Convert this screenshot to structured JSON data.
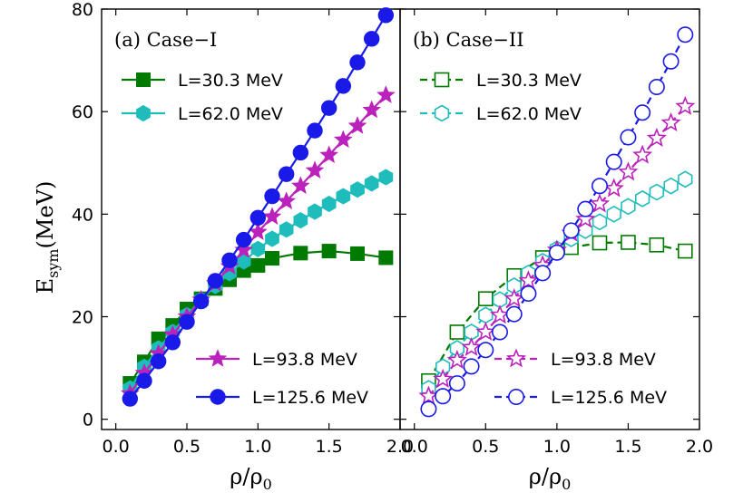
{
  "chart_data": [
    {
      "type": "line",
      "title": "(a) Case−I",
      "xlabel": "ρ/ρ",
      "xlabel_sub": "0",
      "ylabel": "E",
      "ylabel_sub": "sym",
      "ylabel_unit": "(MeV)",
      "xlim": [
        -0.1,
        2.0
      ],
      "ylim": [
        -2,
        80
      ],
      "xticks": [
        "0.0",
        "0.5",
        "1.0",
        "1.5",
        "2.0"
      ],
      "yticks": [
        "0",
        "20",
        "40",
        "60",
        "80"
      ],
      "series": [
        {
          "name": "L=30.3 MeV",
          "color": "#007a00",
          "marker": "square",
          "filled": true,
          "linestyle": "solid",
          "x": [
            0.1,
            0.2,
            0.3,
            0.4,
            0.5,
            0.6,
            0.7,
            0.8,
            0.9,
            1.0,
            1.1,
            1.3,
            1.5,
            1.7,
            1.9
          ],
          "y": [
            7.0,
            11.2,
            15.7,
            18.3,
            21.5,
            23.5,
            25.5,
            27.2,
            29.0,
            30.0,
            31.4,
            32.4,
            32.8,
            32.3,
            31.5
          ]
        },
        {
          "name": "L=62.0 MeV",
          "color": "#1fbcbc",
          "marker": "hexagon",
          "filled": true,
          "linestyle": "solid",
          "x": [
            0.1,
            0.2,
            0.3,
            0.4,
            0.5,
            0.6,
            0.7,
            0.8,
            0.9,
            1.0,
            1.1,
            1.2,
            1.3,
            1.4,
            1.5,
            1.6,
            1.7,
            1.8,
            1.9
          ],
          "y": [
            6.0,
            10.2,
            13.8,
            17.0,
            20.3,
            23.3,
            26.0,
            28.5,
            30.8,
            33.2,
            35.2,
            37.0,
            38.8,
            40.5,
            42.0,
            43.5,
            44.8,
            46.0,
            47.2
          ]
        },
        {
          "name": "L=93.8 MeV",
          "color": "#bb22bb",
          "marker": "star",
          "filled": true,
          "linestyle": "solid",
          "x": [
            0.1,
            0.2,
            0.3,
            0.4,
            0.5,
            0.6,
            0.7,
            0.8,
            0.9,
            1.0,
            1.1,
            1.2,
            1.3,
            1.4,
            1.5,
            1.6,
            1.7,
            1.8,
            1.9
          ],
          "y": [
            5.0,
            9.0,
            12.8,
            16.5,
            20.0,
            23.3,
            26.5,
            29.8,
            33.0,
            36.5,
            39.5,
            42.5,
            45.5,
            48.5,
            51.5,
            54.5,
            57.2,
            60.3,
            63.2
          ]
        },
        {
          "name": "L=125.6 MeV",
          "color": "#1a1ae8",
          "marker": "circle",
          "filled": true,
          "linestyle": "solid",
          "x": [
            0.1,
            0.2,
            0.3,
            0.4,
            0.5,
            0.6,
            0.7,
            0.8,
            0.9,
            1.0,
            1.1,
            1.2,
            1.3,
            1.4,
            1.5,
            1.6,
            1.7,
            1.8,
            1.9
          ],
          "y": [
            4.0,
            7.5,
            11.3,
            15.0,
            19.0,
            23.0,
            27.0,
            31.0,
            35.0,
            39.3,
            43.5,
            47.8,
            52.0,
            56.3,
            60.7,
            65.0,
            69.6,
            74.2,
            78.8
          ]
        }
      ]
    },
    {
      "type": "line",
      "title": "(b) Case−II",
      "xlabel": "ρ/ρ",
      "xlabel_sub": "0",
      "xlim": [
        -0.1,
        2.0
      ],
      "ylim": [
        -2,
        80
      ],
      "xticks": [
        "0.0",
        "0.5",
        "1.0",
        "1.5",
        "2.0"
      ],
      "series": [
        {
          "name": "L=30.3 MeV",
          "color": "#007a00",
          "marker": "square",
          "filled": false,
          "linestyle": "dashed",
          "x": [
            0.1,
            0.3,
            0.5,
            0.7,
            0.9,
            1.1,
            1.3,
            1.5,
            1.7,
            1.9
          ],
          "y": [
            7.5,
            17.0,
            23.5,
            28.0,
            31.5,
            33.5,
            34.4,
            34.5,
            34.0,
            32.8
          ]
        },
        {
          "name": "L=62.0 MeV",
          "color": "#1fbcbc",
          "marker": "hexagon",
          "filled": false,
          "linestyle": "dashed",
          "x": [
            0.1,
            0.2,
            0.3,
            0.4,
            0.5,
            0.6,
            0.7,
            0.8,
            0.9,
            1.0,
            1.1,
            1.2,
            1.3,
            1.4,
            1.5,
            1.6,
            1.7,
            1.8,
            1.9
          ],
          "y": [
            6.0,
            10.2,
            13.8,
            17.0,
            20.3,
            23.3,
            26.0,
            28.5,
            30.8,
            33.2,
            35.2,
            36.8,
            38.5,
            40.0,
            41.5,
            43.0,
            44.3,
            45.5,
            46.8
          ]
        },
        {
          "name": "L=93.8 MeV",
          "color": "#bb22bb",
          "marker": "star",
          "filled": false,
          "linestyle": "dashed",
          "x": [
            0.1,
            0.2,
            0.3,
            0.4,
            0.5,
            0.6,
            0.7,
            0.8,
            0.9,
            1.0,
            1.1,
            1.2,
            1.3,
            1.4,
            1.5,
            1.6,
            1.7,
            1.8,
            1.9
          ],
          "y": [
            4.5,
            7.8,
            11.5,
            14.0,
            17.0,
            20.3,
            23.5,
            27.0,
            30.0,
            33.0,
            36.3,
            39.0,
            42.0,
            45.0,
            48.2,
            51.5,
            54.8,
            57.8,
            61.0
          ]
        },
        {
          "name": "L=125.6 MeV",
          "color": "#1a1ae8",
          "marker": "circle",
          "filled": false,
          "linestyle": "dashed",
          "x": [
            0.1,
            0.2,
            0.3,
            0.4,
            0.5,
            0.6,
            0.7,
            0.8,
            0.9,
            1.0,
            1.1,
            1.2,
            1.3,
            1.4,
            1.5,
            1.6,
            1.7,
            1.8,
            1.9
          ],
          "y": [
            2.0,
            4.5,
            7.0,
            10.3,
            13.5,
            17.0,
            20.5,
            24.5,
            28.5,
            32.5,
            36.8,
            41.0,
            45.5,
            50.2,
            55.0,
            59.8,
            64.8,
            69.8,
            75.0
          ]
        }
      ]
    }
  ]
}
